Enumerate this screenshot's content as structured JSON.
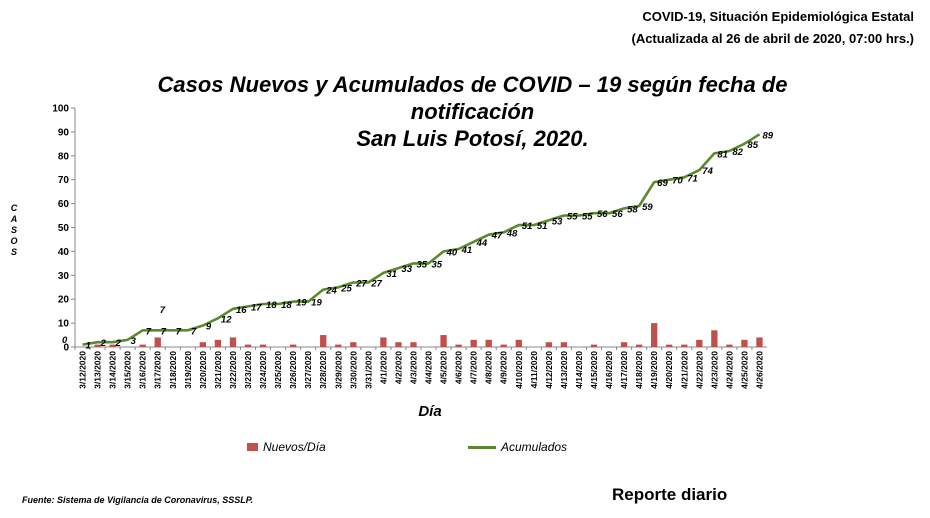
{
  "header": {
    "line1": "COVID-19, Situación Epidemiológica Estatal",
    "line2": "(Actualizada al 26 de abril de 2020, 07:00 hrs.)"
  },
  "footer": {
    "source": "Fuente: Sistema de Vigilancia de Coronavirus, SSSLP.",
    "report": "Reporte diario"
  },
  "colors": {
    "bars": "#c0504d",
    "line": "#5a8a2c"
  },
  "chart_data": {
    "type": "bar",
    "title_lines": [
      "Casos Nuevos y Acumulados de COVID – 19 según fecha de",
      "notificación",
      "San Luis Potosí, 2020."
    ],
    "xlabel": "Día",
    "ylabel": "CASOS",
    "ylim": [
      0,
      100
    ],
    "yticks": [
      0,
      10,
      20,
      30,
      40,
      50,
      60,
      70,
      80,
      90,
      100
    ],
    "grid": false,
    "legend_position": "bottom",
    "categories": [
      "3/12/2020",
      "3/13/2020",
      "3/14/2020",
      "3/15/2020",
      "3/16/2020",
      "3/17/2020",
      "3/18/2020",
      "3/19/2020",
      "3/20/2020",
      "3/21/2020",
      "3/22/2020",
      "3/23/2020",
      "3/24/2020",
      "3/25/2020",
      "3/26/2020",
      "3/27/2020",
      "3/28/2020",
      "3/29/2020",
      "3/30/2020",
      "3/31/2020",
      "4/1/2020",
      "4/2/2020",
      "4/3/2020",
      "4/4/2020",
      "4/5/2020",
      "4/6/2020",
      "4/7/2020",
      "4/8/2020",
      "4/9/2020",
      "4/10/2020",
      "4/11/2020",
      "4/12/2020",
      "4/13/2020",
      "4/14/2020",
      "4/15/2020",
      "4/16/2020",
      "4/17/2020",
      "4/18/2020",
      "4/19/2020",
      "4/20/2020",
      "4/21/2020",
      "4/22/2020",
      "4/23/2020",
      "4/24/2020",
      "4/25/2020",
      "4/26/2020"
    ],
    "series": [
      {
        "name": "Nuevos/Día",
        "type": "bar",
        "values": [
          0,
          1,
          1,
          0,
          1,
          4,
          0,
          0,
          2,
          3,
          4,
          1,
          1,
          0,
          1,
          0,
          5,
          1,
          2,
          0,
          4,
          2,
          2,
          0,
          5,
          1,
          3,
          3,
          1,
          3,
          0,
          2,
          2,
          0,
          1,
          0,
          2,
          1,
          10,
          1,
          1,
          3,
          7,
          1,
          3,
          4
        ]
      },
      {
        "name": "Acumulados",
        "type": "line",
        "values": [
          1,
          2,
          2,
          3,
          7,
          7,
          7,
          7,
          9,
          12,
          16,
          17,
          18,
          18,
          19,
          19,
          24,
          25,
          27,
          27,
          31,
          33,
          35,
          35,
          40,
          41,
          44,
          47,
          48,
          51,
          51,
          53,
          55,
          55,
          56,
          56,
          58,
          59,
          69,
          70,
          71,
          74,
          81,
          82,
          85,
          89
        ],
        "labels": [
          "1",
          "2",
          "2",
          "3",
          "7",
          "7",
          "7",
          "7",
          "9",
          "12",
          "16",
          "17",
          "18",
          "18",
          "19",
          "19",
          "24",
          "25",
          "27",
          "27",
          "31",
          "33",
          "35",
          "35",
          "40",
          "41",
          "44",
          "47",
          "48",
          "51",
          "51",
          "53",
          "55",
          "55",
          "56",
          "56",
          "58",
          "59",
          "69",
          "70",
          "71",
          "74",
          "81",
          "82",
          "85",
          "89"
        ]
      }
    ],
    "extra_labels": [
      "0",
      "7"
    ]
  }
}
